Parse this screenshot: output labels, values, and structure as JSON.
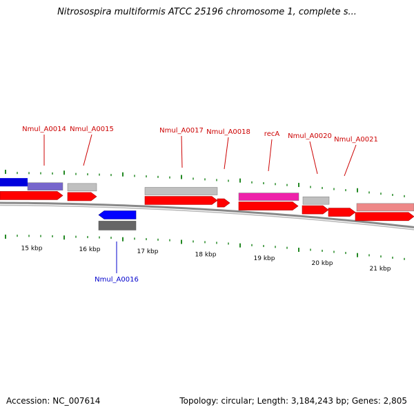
{
  "title": "Nitrosospira multiformis ATCC 25196 chromosome 1, complete s...",
  "accession_label": "Accession: NC_007614",
  "topology_label": "Topology: circular; Length: 3,184,243 bp; Genes: 2,805",
  "colors": {
    "forward_cds": "#ff0000",
    "reverse_cds": "#0000ff",
    "forward_label": "#cc0000",
    "reverse_label": "#0000cc",
    "tick": "#228822",
    "backbone": "#888888"
  },
  "ruler": {
    "unit": "kbp",
    "labels": [
      "15 kbp",
      "16 kbp",
      "17 kbp",
      "18 kbp",
      "19 kbp",
      "20 kbp",
      "21 kbp"
    ]
  },
  "genes": [
    {
      "name": "Nmul_A0014",
      "strand": "forward",
      "ortholog_color": "#7766cc"
    },
    {
      "name": "Nmul_A0015",
      "strand": "forward",
      "ortholog_color": "#c0c0c0"
    },
    {
      "name": "Nmul_A0016",
      "strand": "reverse",
      "ortholog_color": "#666666"
    },
    {
      "name": "Nmul_A0017",
      "strand": "forward",
      "ortholog_color": "#c0c0c0"
    },
    {
      "name": "Nmul_A0018",
      "strand": "forward",
      "ortholog_color": ""
    },
    {
      "name": "recA",
      "strand": "forward",
      "ortholog_color": "#ee22aa"
    },
    {
      "name": "Nmul_A0020",
      "strand": "forward",
      "ortholog_color": "#c0c0c0"
    },
    {
      "name": "Nmul_A0021",
      "strand": "forward",
      "ortholog_color": ""
    },
    {
      "name": "",
      "strand": "forward",
      "ortholog_color": "#ee8888"
    }
  ]
}
